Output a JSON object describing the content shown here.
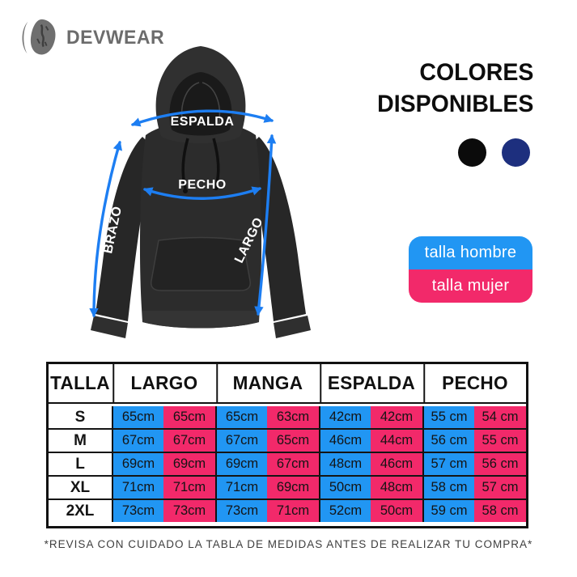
{
  "brand": {
    "name": "DEVWEAR"
  },
  "palette": {
    "hombre_blue": "#2196f3",
    "mujer_pink": "#f2296a",
    "arrow_blue": "#1d7ef2",
    "swatch_black": "#0b0b0b",
    "swatch_navy": "#1d2f7e"
  },
  "diagram": {
    "labels": {
      "espalda": "ESPALDA",
      "pecho": "PECHO",
      "brazo": "BRAZO",
      "largo": "LARGO"
    }
  },
  "colors_section": {
    "title": [
      "COLORES",
      "DISPONIBLES"
    ],
    "swatches": [
      {
        "name": "negro",
        "color_key": "swatch_black"
      },
      {
        "name": "azul marino",
        "color_key": "swatch_navy"
      }
    ]
  },
  "legend": {
    "items": [
      {
        "label": "talla hombre",
        "color_key": "hombre_blue"
      },
      {
        "label": "talla mujer",
        "color_key": "mujer_pink"
      }
    ]
  },
  "table": {
    "headers": [
      "TALLA",
      "LARGO",
      "MANGA",
      "ESPALDA",
      "PECHO"
    ],
    "rows": [
      {
        "talla": "S",
        "cells": [
          "65cm",
          "65cm",
          "65cm",
          "63cm",
          "42cm",
          "42cm",
          "55 cm",
          "54 cm"
        ]
      },
      {
        "talla": "M",
        "cells": [
          "67cm",
          "67cm",
          "67cm",
          "65cm",
          "46cm",
          "44cm",
          "56 cm",
          "55 cm"
        ]
      },
      {
        "talla": "L",
        "cells": [
          "69cm",
          "69cm",
          "69cm",
          "67cm",
          "48cm",
          "46cm",
          "57 cm",
          "56 cm"
        ]
      },
      {
        "talla": "XL",
        "cells": [
          "71cm",
          "71cm",
          "71cm",
          "69cm",
          "50cm",
          "48cm",
          "58 cm",
          "57 cm"
        ]
      },
      {
        "talla": "2XL",
        "cells": [
          "73cm",
          "73cm",
          "73cm",
          "71cm",
          "52cm",
          "50cm",
          "59 cm",
          "58 cm"
        ]
      }
    ]
  },
  "footer": {
    "note": "*REVISA CON CUIDADO LA TABLA DE MEDIDAS ANTES DE REALIZAR TU COMPRA*"
  }
}
